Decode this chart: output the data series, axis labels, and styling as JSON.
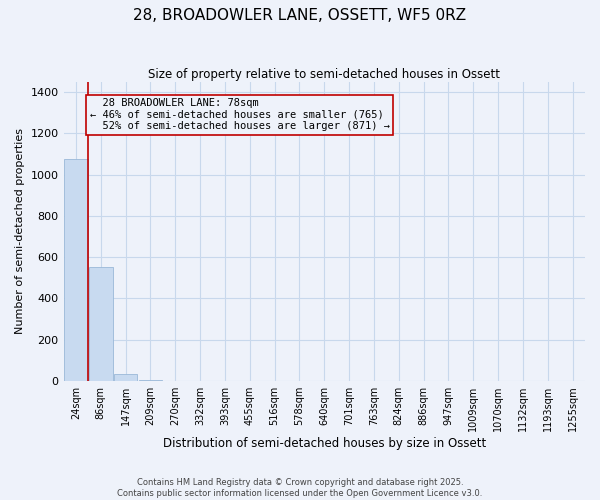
{
  "title1": "28, BROADOWLER LANE, OSSETT, WF5 0RZ",
  "title2": "Size of property relative to semi-detached houses in Ossett",
  "xlabel": "Distribution of semi-detached houses by size in Ossett",
  "ylabel": "Number of semi-detached properties",
  "bar_categories": [
    "24sqm",
    "86sqm",
    "147sqm",
    "209sqm",
    "270sqm",
    "332sqm",
    "393sqm",
    "455sqm",
    "516sqm",
    "578sqm",
    "640sqm",
    "701sqm",
    "763sqm",
    "824sqm",
    "886sqm",
    "947sqm",
    "1009sqm",
    "1070sqm",
    "1132sqm",
    "1193sqm",
    "1255sqm"
  ],
  "bar_values": [
    1075,
    550,
    35,
    5,
    2,
    1,
    0,
    0,
    0,
    0,
    0,
    0,
    0,
    0,
    0,
    0,
    0,
    0,
    0,
    0,
    0
  ],
  "bar_color": "#c8daf0",
  "bar_edge_color": "#9ab8d8",
  "property_size_sqm": 78,
  "property_label": "28 BROADOWLER LANE: 78sqm",
  "pct_smaller": 46,
  "num_smaller": 765,
  "pct_larger": 52,
  "num_larger": 871,
  "vline_color": "#c00000",
  "ylim": [
    0,
    1450
  ],
  "yticks": [
    0,
    200,
    400,
    600,
    800,
    1000,
    1200,
    1400
  ],
  "grid_color": "#c8d8ec",
  "background_color": "#eef2fa",
  "footer_line1": "Contains HM Land Registry data © Crown copyright and database right 2025.",
  "footer_line2": "Contains public sector information licensed under the Open Government Licence v3.0."
}
